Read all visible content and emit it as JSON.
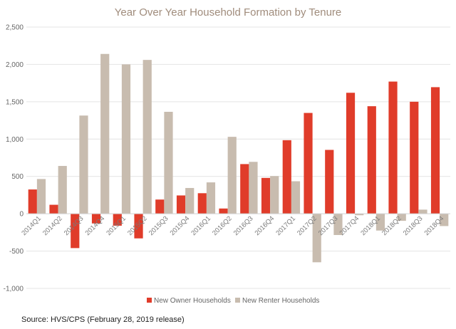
{
  "chart_data": {
    "type": "bar",
    "title": "Year Over Year Household Formation by Tenure",
    "categories": [
      "2014Q1",
      "2014Q2",
      "2014Q3",
      "2014Q4",
      "2015Q1",
      "2015Q2",
      "2015Q3",
      "2015Q4",
      "2016Q1",
      "2016Q2",
      "2016Q3",
      "2016Q4",
      "2017Q1",
      "2017Q2",
      "2017Q3",
      "2017Q4",
      "2018Q1",
      "2018Q2",
      "2018Q3",
      "2018Q4"
    ],
    "series": [
      {
        "name": "New Owner Households",
        "color": "#e03c2a",
        "values": [
          325,
          120,
          -460,
          -130,
          -160,
          -330,
          190,
          245,
          275,
          70,
          665,
          480,
          985,
          1350,
          855,
          1620,
          1440,
          1770,
          1500,
          1695
        ]
      },
      {
        "name": "New Renter Households",
        "color": "#c8bcaf",
        "values": [
          465,
          640,
          1315,
          2140,
          2000,
          2060,
          1365,
          345,
          420,
          1030,
          695,
          505,
          435,
          -650,
          -285,
          -20,
          -225,
          -95,
          55,
          -165
        ]
      }
    ],
    "ylim": [
      -1000,
      2500
    ],
    "yticks": [
      -1000,
      -500,
      0,
      500,
      1000,
      1500,
      2000,
      2500
    ],
    "ytick_labels": [
      "-1,000",
      "-500",
      "0",
      "500",
      "1,000",
      "1,500",
      "2,000",
      "2,500"
    ],
    "grid": true,
    "legend_position": "bottom"
  },
  "source": "Source:  HVS/CPS (February 28, 2019 release)"
}
